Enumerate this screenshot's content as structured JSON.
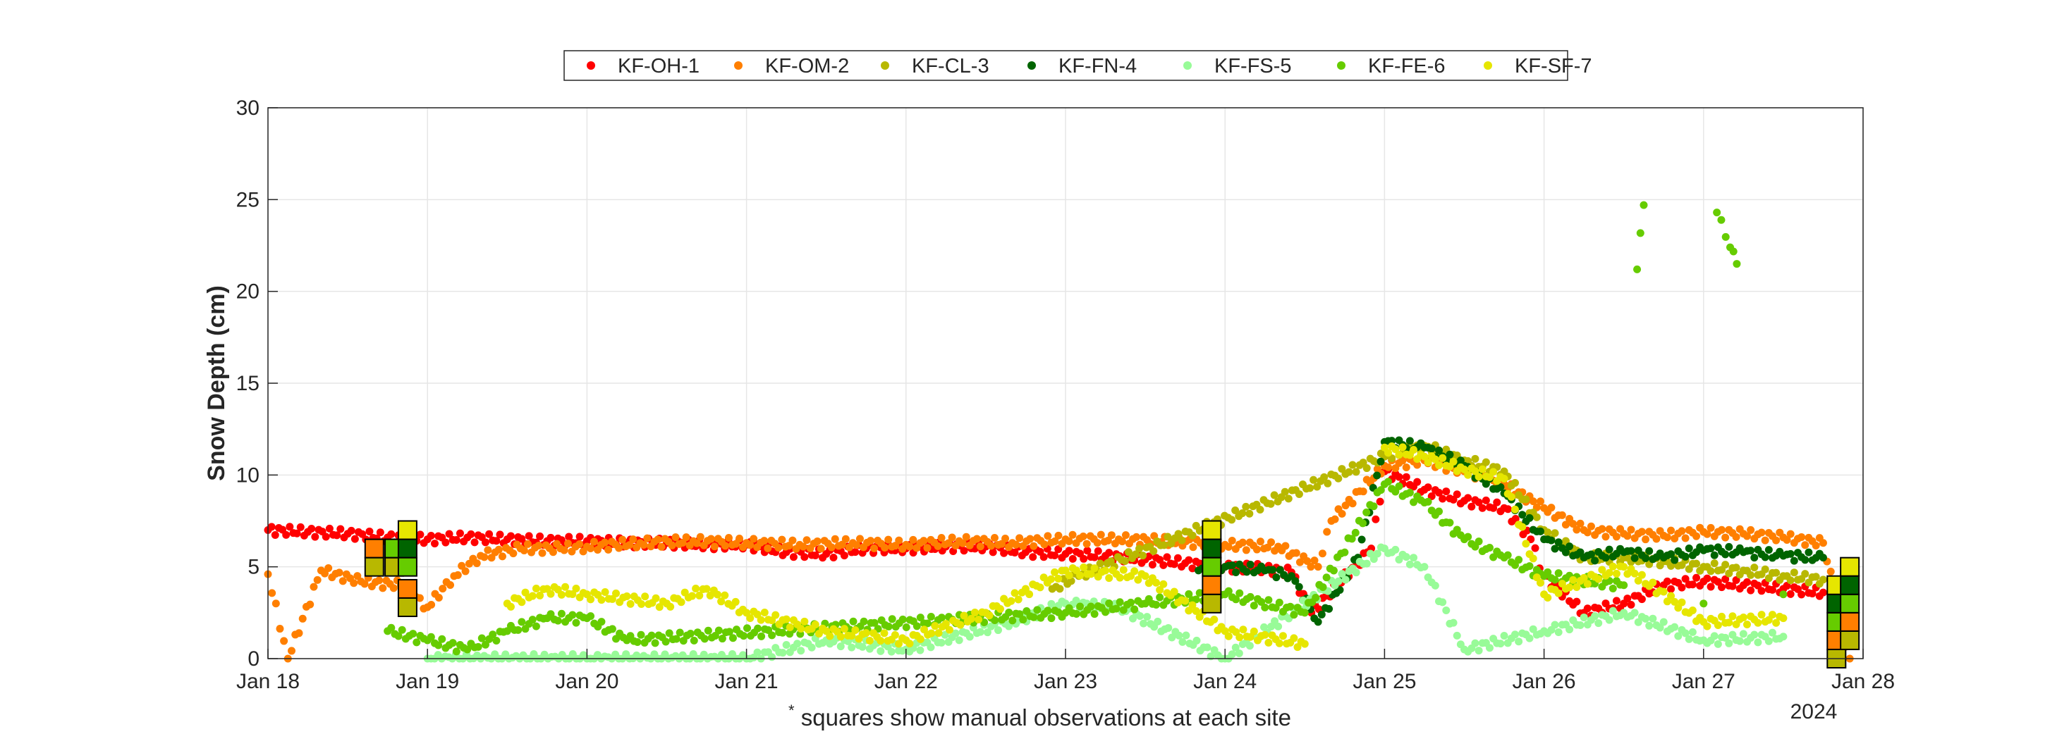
{
  "chart_data": {
    "type": "scatter",
    "title": "",
    "xlabel": "",
    "ylabel": "Snow Depth (cm)",
    "xlim": [
      "2024-01-18",
      "2024-01-28"
    ],
    "ylim": [
      0,
      30
    ],
    "x_ticks": [
      "Jan 18",
      "Jan 19",
      "Jan 20",
      "Jan 21",
      "Jan 22",
      "Jan 23",
      "Jan 24",
      "Jan 25",
      "Jan 26",
      "Jan 27",
      "Jan 28"
    ],
    "x_year_label": "2024",
    "y_ticks": [
      0,
      5,
      10,
      15,
      20,
      25,
      30
    ],
    "grid": true,
    "legend_position": "top-center",
    "footnote_marker": "*",
    "footnote": "squares show manual observations at each site",
    "series": [
      {
        "name": "KF-OH-1",
        "color": "#ff0000",
        "points": [
          [
            "2024-01-18T00:00",
            7.0
          ],
          [
            "2024-01-18T06:00",
            6.9
          ],
          [
            "2024-01-18T12:00",
            6.8
          ],
          [
            "2024-01-18T18:00",
            6.6
          ],
          [
            "2024-01-19T00:00",
            6.5
          ],
          [
            "2024-01-19T06:00",
            6.6
          ],
          [
            "2024-01-19T12:00",
            6.5
          ],
          [
            "2024-01-19T18:00",
            6.4
          ],
          [
            "2024-01-20T00:00",
            6.4
          ],
          [
            "2024-01-20T06:00",
            6.3
          ],
          [
            "2024-01-20T12:00",
            6.3
          ],
          [
            "2024-01-20T18:00",
            6.2
          ],
          [
            "2024-01-21T00:00",
            6.2
          ],
          [
            "2024-01-21T06:00",
            5.8
          ],
          [
            "2024-01-21T12:00",
            5.7
          ],
          [
            "2024-01-21T18:00",
            6.0
          ],
          [
            "2024-01-22T00:00",
            6.0
          ],
          [
            "2024-01-22T06:00",
            6.1
          ],
          [
            "2024-01-22T12:00",
            6.1
          ],
          [
            "2024-01-22T18:00",
            5.8
          ],
          [
            "2024-01-23T00:00",
            5.7
          ],
          [
            "2024-01-23T06:00",
            5.6
          ],
          [
            "2024-01-23T12:00",
            5.4
          ],
          [
            "2024-01-23T18:00",
            5.2
          ],
          [
            "2024-01-24T00:00",
            5.0
          ],
          [
            "2024-01-24T06:00",
            4.9
          ],
          [
            "2024-01-24T10:00",
            4.7
          ],
          [
            "2024-01-24T13:00",
            2.5
          ],
          [
            "2024-01-24T22:00",
            6.0
          ],
          [
            "2024-01-25T00:00",
            10.2
          ],
          [
            "2024-01-25T06:00",
            9.2
          ],
          [
            "2024-01-25T12:00",
            8.6
          ],
          [
            "2024-01-25T18:00",
            8.2
          ],
          [
            "2024-01-25T22:00",
            6.5
          ],
          [
            "2024-01-26T00:00",
            4.5
          ],
          [
            "2024-01-26T06:00",
            2.5
          ],
          [
            "2024-01-26T12:00",
            3.0
          ],
          [
            "2024-01-26T18:00",
            4.0
          ],
          [
            "2024-01-27T00:00",
            4.2
          ],
          [
            "2024-01-27T06:00",
            4.0
          ],
          [
            "2024-01-27T12:00",
            3.8
          ],
          [
            "2024-01-27T18:00",
            3.6
          ]
        ]
      },
      {
        "name": "KF-OM-2",
        "color": "#ff7f00",
        "points": [
          [
            "2024-01-18T00:00",
            4.6
          ],
          [
            "2024-01-18T03:00",
            0.0
          ],
          [
            "2024-01-18T08:00",
            4.8
          ],
          [
            "2024-01-18T14:00",
            4.2
          ],
          [
            "2024-01-18T20:00",
            4.0
          ],
          [
            "2024-01-19T00:00",
            2.8
          ],
          [
            "2024-01-19T04:00",
            4.5
          ],
          [
            "2024-01-19T08:00",
            5.6
          ],
          [
            "2024-01-19T14:00",
            6.0
          ],
          [
            "2024-01-19T20:00",
            6.0
          ],
          [
            "2024-01-20T00:00",
            6.1
          ],
          [
            "2024-01-20T08:00",
            6.3
          ],
          [
            "2024-01-20T16:00",
            6.4
          ],
          [
            "2024-01-21T00:00",
            6.3
          ],
          [
            "2024-01-21T08:00",
            6.2
          ],
          [
            "2024-01-21T16:00",
            6.3
          ],
          [
            "2024-01-22T00:00",
            6.2
          ],
          [
            "2024-01-22T08:00",
            6.4
          ],
          [
            "2024-01-22T16:00",
            6.3
          ],
          [
            "2024-01-23T00:00",
            6.5
          ],
          [
            "2024-01-23T08:00",
            6.5
          ],
          [
            "2024-01-23T16:00",
            6.4
          ],
          [
            "2024-01-24T00:00",
            6.2
          ],
          [
            "2024-01-24T08:00",
            6.1
          ],
          [
            "2024-01-24T14:00",
            5.0
          ],
          [
            "2024-01-24T16:00",
            7.5
          ],
          [
            "2024-01-25T00:00",
            10.5
          ],
          [
            "2024-01-25T06:00",
            10.8
          ],
          [
            "2024-01-25T12:00",
            10.2
          ],
          [
            "2024-01-25T18:00",
            9.5
          ],
          [
            "2024-01-26T00:00",
            8.2
          ],
          [
            "2024-01-26T06:00",
            7.0
          ],
          [
            "2024-01-26T12:00",
            6.8
          ],
          [
            "2024-01-26T18:00",
            6.7
          ],
          [
            "2024-01-27T00:00",
            6.9
          ],
          [
            "2024-01-27T06:00",
            6.8
          ],
          [
            "2024-01-27T12:00",
            6.6
          ],
          [
            "2024-01-27T18:00",
            6.3
          ],
          [
            "2024-01-27T22:00",
            0.0
          ]
        ]
      },
      {
        "name": "KF-CL-3",
        "color": "#b8b800",
        "points": [
          [
            "2024-01-22T22:00",
            3.8
          ],
          [
            "2024-01-23T02:00",
            4.5
          ],
          [
            "2024-01-25T00:00",
            11.0
          ],
          [
            "2024-01-25T06:00",
            11.6
          ],
          [
            "2024-01-25T12:00",
            10.8
          ],
          [
            "2024-01-25T18:00",
            10.2
          ],
          [
            "2024-01-26T00:00",
            7.0
          ],
          [
            "2024-01-26T06:00",
            5.5
          ],
          [
            "2024-01-26T12:00",
            5.5
          ],
          [
            "2024-01-26T18:00",
            5.3
          ],
          [
            "2024-01-27T00:00",
            5.0
          ],
          [
            "2024-01-27T06:00",
            4.8
          ],
          [
            "2024-01-27T12:00",
            4.5
          ],
          [
            "2024-01-27T18:00",
            4.3
          ]
        ]
      },
      {
        "name": "KF-FN-4",
        "color": "#006400",
        "points": [
          [
            "2024-01-23T20:00",
            4.8
          ],
          [
            "2024-01-24T00:00",
            5.0
          ],
          [
            "2024-01-24T06:00",
            4.8
          ],
          [
            "2024-01-24T10:00",
            4.5
          ],
          [
            "2024-01-24T14:00",
            2.0
          ],
          [
            "2024-01-24T20:00",
            5.5
          ],
          [
            "2024-01-25T00:00",
            11.8
          ],
          [
            "2024-01-25T06:00",
            11.5
          ],
          [
            "2024-01-25T12:00",
            10.5
          ],
          [
            "2024-01-25T18:00",
            9.0
          ],
          [
            "2024-01-26T00:00",
            6.5
          ],
          [
            "2024-01-26T06:00",
            5.5
          ],
          [
            "2024-01-26T12:00",
            5.8
          ],
          [
            "2024-01-26T18:00",
            5.5
          ],
          [
            "2024-01-27T00:00",
            5.9
          ],
          [
            "2024-01-27T06:00",
            5.8
          ],
          [
            "2024-01-27T12:00",
            5.6
          ],
          [
            "2024-01-27T18:00",
            5.5
          ]
        ]
      },
      {
        "name": "KF-FS-5",
        "color": "#98fb98",
        "points": [
          [
            "2024-01-19T00:00",
            0.0
          ],
          [
            "2024-01-20T00:00",
            0.0
          ],
          [
            "2024-01-21T00:00",
            0.0
          ],
          [
            "2024-01-21T12:00",
            1.0
          ],
          [
            "2024-01-22T00:00",
            0.5
          ],
          [
            "2024-01-22T16:00",
            2.0
          ],
          [
            "2024-01-23T00:00",
            3.0
          ],
          [
            "2024-01-23T08:00",
            2.8
          ],
          [
            "2024-01-24T00:00",
            0.0
          ],
          [
            "2024-01-25T00:00",
            6.0
          ],
          [
            "2024-01-25T06:00",
            5.0
          ],
          [
            "2024-01-25T12:00",
            0.5
          ],
          [
            "2024-01-26T00:00",
            1.5
          ],
          [
            "2024-01-26T12:00",
            2.5
          ],
          [
            "2024-01-27T00:00",
            1.0
          ],
          [
            "2024-01-27T12:00",
            1.2
          ]
        ]
      },
      {
        "name": "KF-FE-6",
        "color": "#66cc00",
        "points": [
          [
            "2024-01-18T18:00",
            1.5
          ],
          [
            "2024-01-19T00:00",
            1.0
          ],
          [
            "2024-01-19T06:00",
            0.5
          ],
          [
            "2024-01-19T12:00",
            1.5
          ],
          [
            "2024-01-19T18:00",
            2.2
          ],
          [
            "2024-01-20T00:00",
            2.2
          ],
          [
            "2024-01-20T06:00",
            1.0
          ],
          [
            "2024-01-23T00:00",
            2.5
          ],
          [
            "2024-01-23T12:00",
            3.0
          ],
          [
            "2024-01-24T00:00",
            3.5
          ],
          [
            "2024-01-24T12:00",
            2.5
          ],
          [
            "2024-01-25T00:00",
            9.5
          ],
          [
            "2024-01-25T06:00",
            8.5
          ],
          [
            "2024-01-25T12:00",
            6.5
          ],
          [
            "2024-01-25T18:00",
            5.5
          ],
          [
            "2024-01-26T00:00",
            4.5
          ],
          [
            "2024-01-26T12:00",
            4.0
          ],
          [
            "2024-01-26T14:00",
            21.2
          ],
          [
            "2024-01-26T15:00",
            24.7
          ],
          [
            "2024-01-27T00:00",
            3.0
          ],
          [
            "2024-01-27T02:00",
            24.3
          ],
          [
            "2024-01-27T04:00",
            22.4
          ],
          [
            "2024-01-27T05:00",
            21.5
          ],
          [
            "2024-01-27T12:00",
            3.5
          ]
        ]
      },
      {
        "name": "KF-SF-7",
        "color": "#e6e600",
        "points": [
          [
            "2024-01-19T12:00",
            3.0
          ],
          [
            "2024-01-19T18:00",
            3.8
          ],
          [
            "2024-01-20T00:00",
            3.5
          ],
          [
            "2024-01-20T12:00",
            3.0
          ],
          [
            "2024-01-20T18:00",
            3.8
          ],
          [
            "2024-01-21T00:00",
            2.5
          ],
          [
            "2024-01-21T12:00",
            1.5
          ],
          [
            "2024-01-22T00:00",
            1.0
          ],
          [
            "2024-01-22T12:00",
            2.5
          ],
          [
            "2024-01-23T00:00",
            4.8
          ],
          [
            "2024-01-23T12:00",
            4.5
          ],
          [
            "2024-01-24T00:00",
            1.5
          ],
          [
            "2024-01-24T12:00",
            0.8
          ],
          [
            "2024-01-25T00:00",
            11.5
          ],
          [
            "2024-01-25T06:00",
            11.0
          ],
          [
            "2024-01-25T12:00",
            10.3
          ],
          [
            "2024-01-25T18:00",
            9.8
          ],
          [
            "2024-01-26T00:00",
            3.5
          ],
          [
            "2024-01-26T12:00",
            5.0
          ],
          [
            "2024-01-27T00:00",
            2.0
          ],
          [
            "2024-01-27T12:00",
            2.2
          ]
        ]
      }
    ],
    "manual_observations": [
      {
        "x": "2024-01-18T16:00",
        "ys": [
          5,
          6
        ]
      },
      {
        "x": "2024-01-18T19:00",
        "ys": [
          5,
          6,
          6
        ]
      },
      {
        "x": "2024-01-18T21:00",
        "ys": [
          2.8,
          3.8,
          5,
          6,
          7
        ]
      },
      {
        "x": "2024-01-23T22:00",
        "ys": [
          3,
          4,
          5,
          6,
          7
        ]
      },
      {
        "x": "2024-01-27T20:00",
        "ys": [
          0,
          1,
          2,
          3,
          4
        ]
      },
      {
        "x": "2024-01-27T22:00",
        "ys": [
          1,
          2,
          3,
          4,
          5
        ]
      }
    ]
  }
}
